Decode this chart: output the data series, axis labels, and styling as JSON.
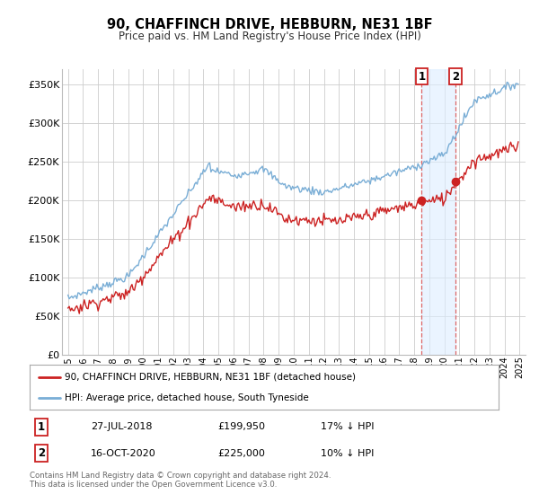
{
  "title": "90, CHAFFINCH DRIVE, HEBBURN, NE31 1BF",
  "subtitle": "Price paid vs. HM Land Registry's House Price Index (HPI)",
  "sale1_date": "27-JUL-2018",
  "sale1_price": 199950,
  "sale1_hpi": "17% ↓ HPI",
  "sale2_date": "16-OCT-2020",
  "sale2_price": 225000,
  "sale2_hpi": "10% ↓ HPI",
  "legend1": "90, CHAFFINCH DRIVE, HEBBURN, NE31 1BF (detached house)",
  "legend2": "HPI: Average price, detached house, South Tyneside",
  "footer": "Contains HM Land Registry data © Crown copyright and database right 2024.\nThis data is licensed under the Open Government Licence v3.0.",
  "hpi_color": "#7aaed6",
  "price_color": "#cc2222",
  "shade_color": "#ddeeff",
  "vline_color": "#dd6666",
  "ylim": [
    0,
    370000
  ],
  "yticks": [
    0,
    50000,
    100000,
    150000,
    200000,
    250000,
    300000,
    350000
  ],
  "bg_color": "#ffffff",
  "grid_color": "#cccccc",
  "sale1_yr_float": 2018.5,
  "sale2_yr_float": 2020.75
}
